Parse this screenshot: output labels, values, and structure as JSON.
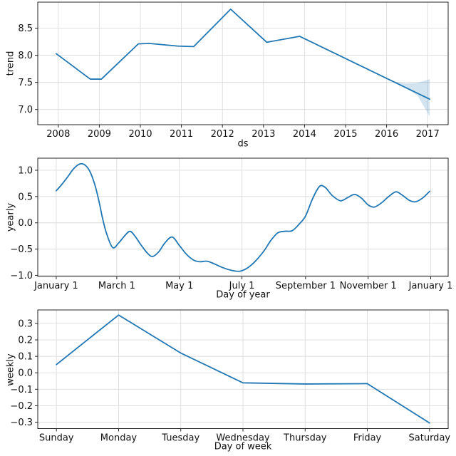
{
  "figure": {
    "background": "#ffffff",
    "line_color": "#1f77b4",
    "band_color": "rgba(31,119,180,0.2)",
    "grid_color": "#dcdcdc",
    "spine_color": "#262626",
    "text_color": "#111111"
  },
  "chart_data": [
    {
      "id": "trend",
      "type": "line",
      "title": "",
      "xlabel": "ds",
      "ylabel": "trend",
      "grid": true,
      "legend": "none",
      "xlim": [
        2007.5,
        2017.5
      ],
      "ylim": [
        6.72,
        8.98
      ],
      "xticks": {
        "values": [
          2008,
          2009,
          2010,
          2011,
          2012,
          2013,
          2014,
          2015,
          2016,
          2017
        ],
        "labels": [
          "2008",
          "2009",
          "2010",
          "2011",
          "2012",
          "2013",
          "2014",
          "2015",
          "2016",
          "2017"
        ]
      },
      "yticks": {
        "values": [
          7.0,
          7.5,
          8.0,
          8.5
        ],
        "labels": [
          "7.0",
          "7.5",
          "8.0",
          "8.5"
        ]
      },
      "smooth": false,
      "series": [
        {
          "name": "trend",
          "points": [
            [
              2007.95,
              8.03
            ],
            [
              2008.78,
              7.56
            ],
            [
              2009.05,
              7.56
            ],
            [
              2009.95,
              8.21
            ],
            [
              2010.2,
              8.22
            ],
            [
              2010.9,
              8.17
            ],
            [
              2011.3,
              8.16
            ],
            [
              2012.2,
              8.85
            ],
            [
              2013.08,
              8.24
            ],
            [
              2013.88,
              8.35
            ],
            [
              2017.05,
              7.19
            ]
          ]
        }
      ],
      "band": {
        "name": "trend-uncertainty",
        "upper": [
          [
            2016.15,
            7.52
          ],
          [
            2016.45,
            7.48
          ],
          [
            2016.75,
            7.49
          ],
          [
            2017.05,
            7.56
          ]
        ],
        "lower": [
          [
            2016.15,
            7.52
          ],
          [
            2016.45,
            7.41
          ],
          [
            2016.75,
            7.26
          ],
          [
            2017.05,
            6.87
          ]
        ]
      }
    },
    {
      "id": "yearly",
      "type": "line",
      "title": "",
      "xlabel": "Day of year",
      "ylabel": "yearly",
      "grid": true,
      "legend": "none",
      "xlim": [
        -17,
        383
      ],
      "ylim": [
        -1.02,
        1.23
      ],
      "xticks": {
        "values": [
          1,
          60,
          121,
          182,
          244,
          305,
          366
        ],
        "labels": [
          "January 1",
          "March 1",
          "May 1",
          "July 1",
          "September 1",
          "November 1",
          "January 1"
        ]
      },
      "yticks": {
        "values": [
          -1.0,
          -0.5,
          0.0,
          0.5,
          1.0
        ],
        "labels": [
          "−1.0",
          "−0.5",
          "0.0",
          "0.5",
          "1.0"
        ]
      },
      "smooth": true,
      "series": [
        {
          "name": "yearly",
          "points": [
            [
              1,
              0.61
            ],
            [
              6,
              0.72
            ],
            [
              12,
              0.87
            ],
            [
              18,
              1.03
            ],
            [
              24,
              1.12
            ],
            [
              29,
              1.1
            ],
            [
              34,
              0.97
            ],
            [
              39,
              0.7
            ],
            [
              43,
              0.38
            ],
            [
              46,
              0.1
            ],
            [
              50,
              -0.2
            ],
            [
              56,
              -0.47
            ],
            [
              62,
              -0.38
            ],
            [
              68,
              -0.24
            ],
            [
              73,
              -0.16
            ],
            [
              78,
              -0.26
            ],
            [
              84,
              -0.43
            ],
            [
              90,
              -0.58
            ],
            [
              95,
              -0.64
            ],
            [
              101,
              -0.55
            ],
            [
              107,
              -0.38
            ],
            [
              114,
              -0.27
            ],
            [
              121,
              -0.43
            ],
            [
              128,
              -0.6
            ],
            [
              135,
              -0.71
            ],
            [
              141,
              -0.74
            ],
            [
              148,
              -0.73
            ],
            [
              155,
              -0.78
            ],
            [
              163,
              -0.85
            ],
            [
              171,
              -0.9
            ],
            [
              180,
              -0.92
            ],
            [
              188,
              -0.85
            ],
            [
              196,
              -0.71
            ],
            [
              204,
              -0.52
            ],
            [
              210,
              -0.34
            ],
            [
              217,
              -0.19
            ],
            [
              224,
              -0.16
            ],
            [
              231,
              -0.15
            ],
            [
              238,
              -0.02
            ],
            [
              244,
              0.13
            ],
            [
              250,
              0.42
            ],
            [
              255,
              0.62
            ],
            [
              259,
              0.71
            ],
            [
              264,
              0.66
            ],
            [
              270,
              0.52
            ],
            [
              278,
              0.42
            ],
            [
              285,
              0.48
            ],
            [
              292,
              0.54
            ],
            [
              299,
              0.46
            ],
            [
              305,
              0.34
            ],
            [
              311,
              0.3
            ],
            [
              318,
              0.38
            ],
            [
              325,
              0.5
            ],
            [
              332,
              0.59
            ],
            [
              338,
              0.53
            ],
            [
              345,
              0.43
            ],
            [
              351,
              0.4
            ],
            [
              358,
              0.47
            ],
            [
              365,
              0.6
            ]
          ]
        }
      ],
      "band": null
    },
    {
      "id": "weekly",
      "type": "line",
      "title": "",
      "xlabel": "Day of week",
      "ylabel": "weekly",
      "grid": true,
      "legend": "none",
      "xlim": [
        -0.3,
        6.3
      ],
      "ylim": [
        -0.339,
        0.382
      ],
      "xticks": {
        "values": [
          0,
          1,
          2,
          3,
          4,
          5,
          6
        ],
        "labels": [
          "Sunday",
          "Monday",
          "Tuesday",
          "Wednesday",
          "Thursday",
          "Friday",
          "Saturday"
        ]
      },
      "yticks": {
        "values": [
          -0.3,
          -0.2,
          -0.1,
          0.0,
          0.1,
          0.2,
          0.3
        ],
        "labels": [
          "−0.3",
          "−0.2",
          "−0.1",
          "0.0",
          "0.1",
          "0.2",
          "0.3"
        ]
      },
      "smooth": false,
      "series": [
        {
          "name": "weekly",
          "points": [
            [
              0,
              0.05
            ],
            [
              1,
              0.351
            ],
            [
              2,
              0.12
            ],
            [
              3,
              -0.061
            ],
            [
              4,
              -0.068
            ],
            [
              5,
              -0.066
            ],
            [
              6,
              -0.305
            ]
          ]
        }
      ],
      "band": null
    }
  ]
}
